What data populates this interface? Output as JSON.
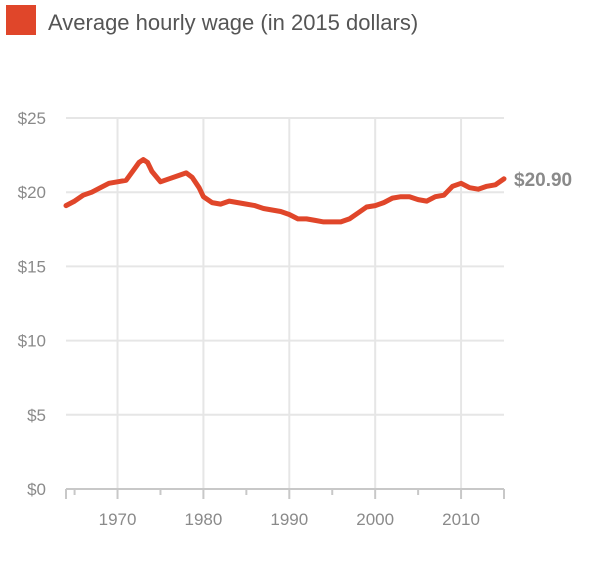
{
  "chart_data": {
    "type": "line",
    "title": "",
    "xlabel": "",
    "ylabel": "",
    "xlim": [
      1964,
      2015
    ],
    "ylim": [
      0,
      25
    ],
    "grid": true,
    "legend_position": "top-left",
    "x_ticks": [
      1970,
      1980,
      1990,
      2000,
      2010
    ],
    "x_tick_labels": [
      "1970",
      "1980",
      "1990",
      "2000",
      "2010"
    ],
    "y_ticks": [
      0,
      5,
      10,
      15,
      20,
      25
    ],
    "y_tick_labels": [
      "$0",
      "$5",
      "$10",
      "$15",
      "$20",
      "$25"
    ],
    "series": [
      {
        "name": "Average hourly wage (in 2015 dollars)",
        "color": "#e0462a",
        "x": [
          1964,
          1965,
          1966,
          1967,
          1968,
          1969,
          1970,
          1971,
          1972,
          1972.5,
          1973,
          1973.5,
          1974,
          1975,
          1976,
          1977,
          1978,
          1978.7,
          1979.5,
          1980,
          1981,
          1982,
          1983,
          1984,
          1985,
          1986,
          1987,
          1988,
          1989,
          1990,
          1991,
          1992,
          1993,
          1994,
          1995,
          1996,
          1997,
          1998,
          1999,
          2000,
          2001,
          2002,
          2003,
          2004,
          2005,
          2006,
          2007,
          2008,
          2009,
          2010,
          2011,
          2012,
          2013,
          2014,
          2015
        ],
        "values": [
          19.1,
          19.4,
          19.8,
          20.0,
          20.3,
          20.6,
          20.7,
          20.8,
          21.6,
          22.0,
          22.2,
          22.0,
          21.4,
          20.7,
          20.9,
          21.1,
          21.3,
          21.0,
          20.3,
          19.7,
          19.3,
          19.2,
          19.4,
          19.3,
          19.2,
          19.1,
          18.9,
          18.8,
          18.7,
          18.5,
          18.2,
          18.2,
          18.1,
          18.0,
          18.0,
          18.0,
          18.2,
          18.6,
          19.0,
          19.1,
          19.3,
          19.6,
          19.7,
          19.7,
          19.5,
          19.4,
          19.7,
          19.8,
          20.4,
          20.6,
          20.3,
          20.2,
          20.4,
          20.5,
          20.9
        ]
      }
    ],
    "annotations": [
      {
        "text": "$20.90",
        "x": 2015,
        "y": 20.9
      }
    ]
  }
}
